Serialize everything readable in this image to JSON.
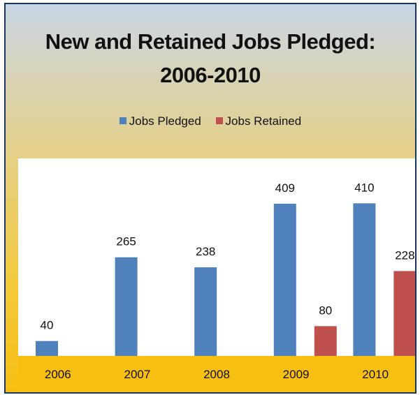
{
  "chart_data": {
    "type": "bar",
    "title_line1": "New and Retained Jobs Pledged:",
    "title_line2": "2006-2010",
    "categories": [
      "2006",
      "2007",
      "2008",
      "2009",
      "2010"
    ],
    "series": [
      {
        "name": "Jobs Pledged",
        "values": [
          40,
          265,
          238,
          409,
          410
        ],
        "color": "#4f81bd"
      },
      {
        "name": "Jobs Retained",
        "values": [
          null,
          null,
          null,
          80,
          228
        ],
        "color": "#c0504d"
      }
    ],
    "ylim": [
      0,
      450
    ],
    "grid": false,
    "legend_position": "top"
  }
}
